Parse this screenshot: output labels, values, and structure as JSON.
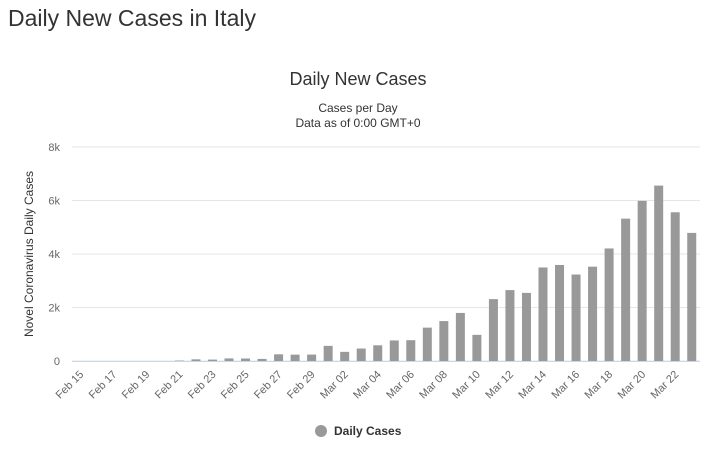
{
  "page_title": "Daily New Cases in Italy",
  "chart_data": {
    "type": "bar",
    "title": "Daily New Cases",
    "subtitle": [
      "Cases per Day",
      "Data as of 0:00 GMT+0"
    ],
    "y_label": "Novel Coronavirus Daily Cases",
    "categories": [
      "Feb 15",
      null,
      "Feb 17",
      null,
      "Feb 19",
      null,
      "Feb 21",
      null,
      "Feb 23",
      null,
      "Feb 25",
      null,
      "Feb 27",
      null,
      "Feb 29",
      null,
      "Mar 02",
      null,
      "Mar 04",
      null,
      "Mar 06",
      null,
      "Mar 08",
      null,
      "Mar 10",
      null,
      "Mar 12",
      null,
      "Mar 14",
      null,
      "Mar 16",
      null,
      "Mar 18",
      null,
      "Mar 20",
      null,
      "Mar 22",
      null
    ],
    "series": [
      {
        "name": "Daily Cases",
        "color": "#999999",
        "values": [
          0,
          0,
          0,
          0,
          0,
          0,
          17,
          62,
          53,
          97,
          93,
          78,
          250,
          238,
          240,
          566,
          342,
          466,
          587,
          769,
          778,
          1247,
          1492,
          1797,
          977,
          2313,
          2651,
          2547,
          3497,
          3590,
          3233,
          3526,
          4207,
          5322,
          5986,
          6557,
          5560,
          4789
        ]
      }
    ],
    "ylim": [
      0,
      8000
    ],
    "yticks": [
      0,
      {
        "value": 2000,
        "label": "2k"
      },
      {
        "value": 4000,
        "label": "4k"
      },
      {
        "value": 6000,
        "label": "6k"
      },
      {
        "value": 8000,
        "label": "8k"
      }
    ],
    "grid": true,
    "legend": "bottom"
  }
}
